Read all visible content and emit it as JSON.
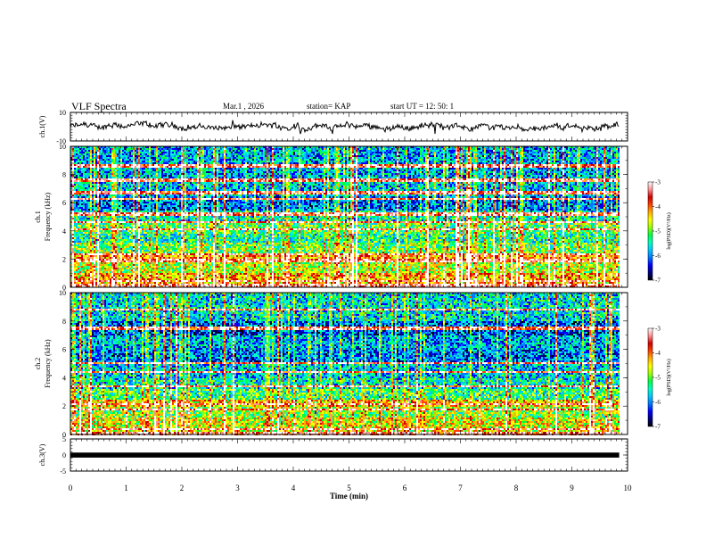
{
  "header": {
    "title": "VLF Spectra",
    "date": "Mar.1  , 2026",
    "station": "station= KAP",
    "start": "start  UT  =   12: 50: 1"
  },
  "colors": {
    "scale": [
      "#000000",
      "#000080",
      "#0000ff",
      "#0078ff",
      "#00c8ff",
      "#00ffc0",
      "#00ff40",
      "#9cff00",
      "#ffff00",
      "#ffb000",
      "#ff4000",
      "#d00000",
      "#ff9090",
      "#ffffff"
    ],
    "trace": "#000000"
  },
  "chart_data": [
    {
      "type": "line",
      "id": "ch1-waveform",
      "ylabel": "ch.1(V)",
      "ylim": [
        -10,
        10
      ],
      "yticks": [
        "10",
        "-10"
      ],
      "xlim": [
        0,
        10
      ],
      "description": "noisy broadband waveform, roughly -4 to 4 V",
      "data_end_min": 9.85
    },
    {
      "type": "heatmap",
      "id": "ch1-spectrogram",
      "ylabel": "ch.1  Frequency (kHz)",
      "ylim": [
        0,
        10
      ],
      "yticks": [
        "0",
        "2",
        "4",
        "6",
        "8",
        "10"
      ],
      "xlim": [
        0,
        10
      ],
      "colorbar": {
        "label": "log(PSD)(V²/Hz)",
        "range": [
          -7,
          -3
        ],
        "ticks": [
          "-3",
          "-4",
          "-5",
          "-6",
          "-7"
        ]
      },
      "band_levels": [
        [
          0,
          0.3,
          -3.5
        ],
        [
          0.3,
          1.0,
          -4.3
        ],
        [
          1.0,
          1.8,
          -4.8
        ],
        [
          1.8,
          2.4,
          -4.2
        ],
        [
          2.4,
          3.2,
          -5.0
        ],
        [
          3.2,
          3.8,
          -5.4
        ],
        [
          3.8,
          4.6,
          -5.1
        ],
        [
          4.6,
          5.5,
          -5.5
        ],
        [
          5.5,
          6.5,
          -6.0
        ],
        [
          6.5,
          7.5,
          -5.7
        ],
        [
          7.5,
          10.0,
          -5.8
        ]
      ],
      "lines_khz": [
        0.4,
        1.9,
        2.3,
        4.1,
        4.6,
        5.2,
        6.3,
        6.7,
        7.6,
        8.6
      ],
      "data_end_min": 9.85
    },
    {
      "type": "heatmap",
      "id": "ch2-spectrogram",
      "ylabel": "ch.2  Frequency (kHz)",
      "ylim": [
        0,
        10
      ],
      "yticks": [
        "0",
        "2",
        "4",
        "6",
        "8",
        "10"
      ],
      "xlim": [
        0,
        10
      ],
      "colorbar": {
        "label": "log(PSD)(V²/Hz)",
        "range": [
          -7,
          -3
        ],
        "ticks": [
          "-3",
          "-4",
          "-5",
          "-6",
          "-7"
        ]
      },
      "band_levels": [
        [
          0,
          0.3,
          -3.6
        ],
        [
          0.3,
          1.2,
          -4.6
        ],
        [
          1.2,
          2.0,
          -4.9
        ],
        [
          2.0,
          2.5,
          -4.4
        ],
        [
          2.5,
          3.3,
          -5.2
        ],
        [
          3.3,
          4.0,
          -5.5
        ],
        [
          4.0,
          5.0,
          -5.7
        ],
        [
          5.0,
          6.0,
          -6.0
        ],
        [
          6.0,
          7.0,
          -5.8
        ],
        [
          7.0,
          8.0,
          -6.1
        ],
        [
          8.0,
          10.0,
          -5.6
        ]
      ],
      "lines_khz": [
        0.4,
        1.8,
        2.2,
        3.4,
        4.4,
        5.1,
        7.5,
        8.8
      ],
      "data_end_min": 9.85
    },
    {
      "type": "line",
      "id": "ch3-waveform",
      "ylabel": "ch.3(V)",
      "ylim": [
        -5,
        5
      ],
      "yticks": [
        "5",
        "0",
        "-5"
      ],
      "xlim": [
        0,
        10
      ],
      "xlabel": "Time  (min)",
      "xticks": [
        "0",
        "1",
        "2",
        "3",
        "4",
        "5",
        "6",
        "7",
        "8",
        "9",
        "10"
      ],
      "level_v": [
        -0.25,
        0.2
      ],
      "data_end_min": 9.85
    }
  ]
}
